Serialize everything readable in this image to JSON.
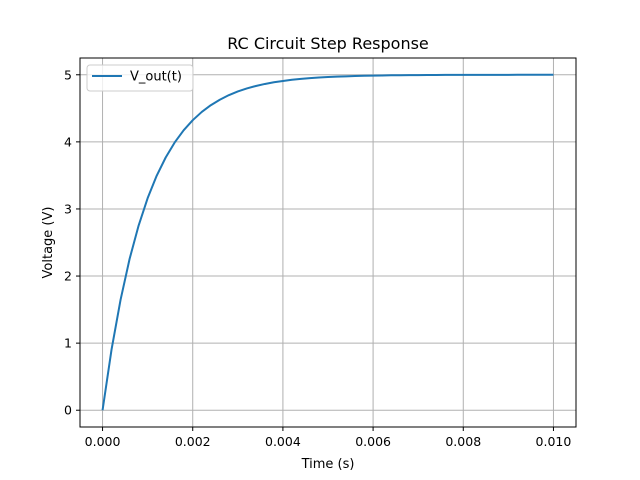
{
  "chart_data": {
    "type": "line",
    "title": "RC Circuit Step Response",
    "xlabel": "Time (s)",
    "ylabel": "Voltage (V)",
    "xlim": [
      -0.0005,
      0.0105
    ],
    "ylim": [
      -0.25,
      5.25
    ],
    "x_ticks": [
      0.0,
      0.002,
      0.004,
      0.006,
      0.008,
      0.01
    ],
    "x_tick_labels": [
      "0.000",
      "0.002",
      "0.004",
      "0.006",
      "0.008",
      "0.010"
    ],
    "y_ticks": [
      0,
      1,
      2,
      3,
      4,
      5
    ],
    "y_tick_labels": [
      "0",
      "1",
      "2",
      "3",
      "4",
      "5"
    ],
    "grid": true,
    "legend_position": "top-left",
    "series": [
      {
        "name": "V_out(t)",
        "color": "#1f77b4",
        "x": [
          0.0,
          0.0002,
          0.0004,
          0.0006,
          0.0008,
          0.001,
          0.0012,
          0.0014,
          0.0016,
          0.0018,
          0.002,
          0.0022,
          0.0024,
          0.0026,
          0.0028,
          0.003,
          0.0032,
          0.0034,
          0.0036,
          0.0038,
          0.004,
          0.0042,
          0.0044,
          0.0046,
          0.0048,
          0.005,
          0.0052,
          0.0054,
          0.0056,
          0.0058,
          0.006,
          0.0062,
          0.0064,
          0.0066,
          0.0068,
          0.007,
          0.0072,
          0.0074,
          0.0076,
          0.0078,
          0.008,
          0.0082,
          0.0084,
          0.0086,
          0.0088,
          0.009,
          0.0092,
          0.0094,
          0.0096,
          0.0098,
          0.01
        ],
        "values": [
          0.0,
          0.906,
          1.648,
          2.256,
          2.753,
          3.161,
          3.494,
          3.767,
          3.991,
          4.174,
          4.323,
          4.446,
          4.546,
          4.628,
          4.696,
          4.751,
          4.796,
          4.833,
          4.863,
          4.888,
          4.908,
          4.925,
          4.939,
          4.95,
          4.959,
          4.966,
          4.972,
          4.977,
          4.982,
          4.985,
          4.988,
          4.99,
          4.992,
          4.993,
          4.994,
          4.995,
          4.996,
          4.997,
          4.998,
          4.998,
          4.998,
          4.999,
          4.999,
          4.999,
          4.999,
          4.999,
          5.0,
          5.0,
          5.0,
          5.0,
          5.0
        ]
      }
    ]
  }
}
